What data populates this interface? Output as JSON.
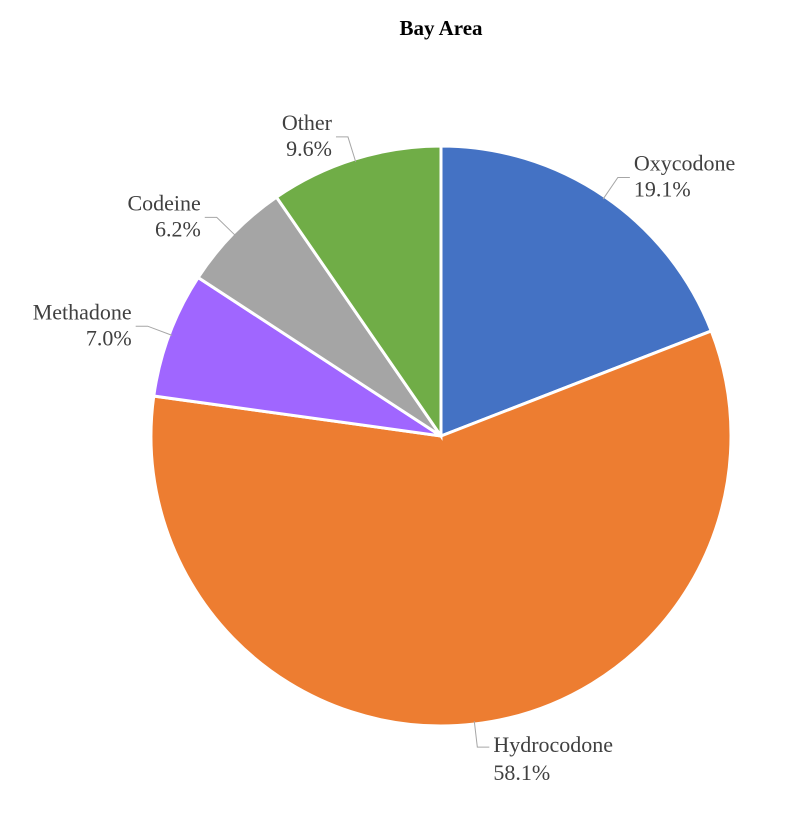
{
  "chart_data": {
    "type": "pie",
    "title": "Bay Area",
    "categories": [
      "Oxycodone",
      "Hydrocodone",
      "Methadone",
      "Codeine",
      "Other"
    ],
    "values": [
      19.1,
      58.1,
      7.0,
      6.2,
      9.6
    ],
    "value_labels": [
      "19.1%",
      "58.1%",
      "7.0%",
      "6.2%",
      "9.6%"
    ],
    "colors": [
      "#4472c4",
      "#ed7d31",
      "#a066ff",
      "#a5a5a5",
      "#70ad47"
    ]
  }
}
